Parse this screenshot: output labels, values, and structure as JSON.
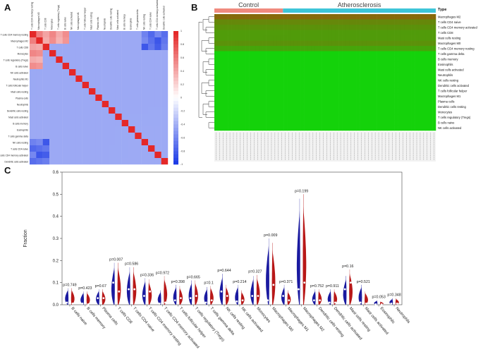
{
  "panels": {
    "a": "A",
    "b": "B",
    "c": "C"
  },
  "colors": {
    "control": "#f08a7e",
    "disease": "#3ec5d8",
    "high": "#ff2222",
    "low": "#00c800",
    "corr_pos": "#ee3333",
    "corr_neg": "#2244ee",
    "violin_control": "#1a1aa0",
    "violin_disease": "#b81818"
  },
  "chart_data": [
    {
      "type": "heatmap",
      "panel": "A",
      "rows": [
        "T cells CD4 memory resting",
        "Macrophages M2",
        "T cells CD8",
        "Monocytes",
        "T cells regulatory (Tregs)",
        "B cells naive",
        "NK cells activated",
        "Neutrophils M1",
        "T cells follicular helper",
        "Mast cells resting",
        "Plasma cells",
        "Neutrophils",
        "Dendritic cells resting",
        "Mast cells activated",
        "B cells memory",
        "Eosinophils",
        "T cells gamma delta",
        "NK cells resting",
        "T cells CD4 naive",
        "T cells CD4 memory activated",
        "Dendritic cells activated"
      ],
      "columns": [
        "T cells CD4 memory resting",
        "Macrophages M2",
        "T cells CD8",
        "Monocytes",
        "T cells regulatory (Tregs)",
        "B cells naive",
        "NK cells activated",
        "Macrophages M1",
        "T cells follicular helper",
        "Mast cells resting",
        "Plasma cells",
        "Neutrophils",
        "Dendritic cells resting",
        "Mast cells activated",
        "B cells memory",
        "Eosinophils",
        "T cells gamma delta",
        "NK cells resting",
        "T cells CD4 naive",
        "T cells CD4 memory activated",
        "Dendritic cells activated"
      ],
      "scale_ticks": [
        "1",
        "0.8",
        "0.6",
        "0.4",
        "0.2",
        "0",
        "-0.2",
        "-0.4",
        "-0.6",
        "-0.8",
        "-1"
      ],
      "scale_range": [
        -1,
        1
      ]
    },
    {
      "type": "heatmap",
      "panel": "B",
      "groups": [
        {
          "name": "Control",
          "fraction": 0.31
        },
        {
          "name": "Atherosclerosis",
          "fraction": 0.69
        }
      ],
      "legend_title": "Type",
      "rows": [
        "Macrophages M2",
        "T cells CD4 naive",
        "T cells CD4 memory activated",
        "T cells CD8",
        "Mast cells resting",
        "Macrophages M0",
        "T cells CD4 memory resting",
        "T cells gamma delta",
        "B cells memory",
        "Eosinophils",
        "Mast cells activated",
        "Neutrophils",
        "NK cells resting",
        "Dendritic cells activated",
        "T cells follicular helper",
        "Macrophages M1",
        "Plasma cells",
        "Dendritic cells resting",
        "Monocytes",
        "T cells regulatory (Tregs)",
        "B cells naive",
        "NK cells activated"
      ],
      "row_level": [
        0.75,
        0.6,
        0.55,
        0.5,
        0.5,
        0.55,
        0.45,
        0.15,
        0.1,
        0.08,
        0.1,
        0.1,
        0.12,
        0.1,
        0.12,
        0.12,
        0.1,
        0.12,
        0.15,
        0.12,
        0.08,
        0.08
      ]
    },
    {
      "type": "violin",
      "panel": "C",
      "ylabel": "Fraction",
      "ylim": [
        0,
        0.6
      ],
      "yticks": [
        "0.0",
        "0.1",
        "0.2",
        "0.3",
        "0.4",
        "0.5",
        "0.6"
      ],
      "series": [
        {
          "name": "Control",
          "color": "#1a1aa0"
        },
        {
          "name": "Atherosclerosis",
          "color": "#b81818"
        }
      ],
      "categories": [
        "B cells naive",
        "B cells memory",
        "Plasma cells",
        "T cells CD8",
        "T cells CD4 naive",
        "T cells CD4 memory resting",
        "T cells CD4 memory activated",
        "T cells follicular helper",
        "T cells regulatory (Tregs)",
        "T cells gamma delta",
        "NK cells resting",
        "NK cells activated",
        "Monocytes",
        "Macrophages M0",
        "Macrophages M1",
        "Macrophages M2",
        "Dendritic cells resting",
        "Dendritic cells activated",
        "Mast cells resting",
        "Mast cells activated",
        "Eosinophils",
        "Neutrophils"
      ],
      "pvalues": [
        "p=0.749",
        "p=0.423",
        "p=0.67",
        "p=0.007",
        "p=0.586",
        "p=0.336",
        "p=0.972",
        "p=0.398",
        "p=0.665",
        "p=0.1",
        "p=0.644",
        "p=0.214",
        "p=0.327",
        "p=0.009",
        "p=0.371",
        "p=0.199",
        "p=0.752",
        "p=0.911",
        "p=0.16",
        "p=0.521",
        "p=0.053",
        "p=0.348"
      ],
      "control_max": [
        0.075,
        0.06,
        0.07,
        0.19,
        0.17,
        0.12,
        0.065,
        0.09,
        0.11,
        0.08,
        0.14,
        0.09,
        0.13,
        0.3,
        0.09,
        0.48,
        0.07,
        0.07,
        0.13,
        0.09,
        0.02,
        0.03
      ],
      "control_median": [
        0.01,
        0.005,
        0.03,
        0.1,
        0.07,
        0.04,
        0.005,
        0.02,
        0.03,
        0.01,
        0.06,
        0.015,
        0.04,
        0.02,
        0.04,
        0.07,
        0.02,
        0.01,
        0.07,
        0.01,
        0.002,
        0.005
      ],
      "disease_max": [
        0.075,
        0.06,
        0.07,
        0.19,
        0.17,
        0.115,
        0.13,
        0.085,
        0.11,
        0.085,
        0.09,
        0.065,
        0.135,
        0.28,
        0.065,
        0.5,
        0.07,
        0.07,
        0.16,
        0.06,
        0.015,
        0.03
      ],
      "disease_median": [
        0.005,
        0.002,
        0.03,
        0.06,
        0.07,
        0.06,
        0.01,
        0.03,
        0.04,
        0.02,
        0.04,
        0.02,
        0.04,
        0.09,
        0.02,
        0.1,
        0.02,
        0.01,
        0.1,
        0.005,
        0.002,
        0.005
      ]
    }
  ]
}
